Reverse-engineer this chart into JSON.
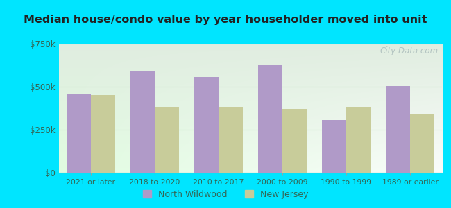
{
  "title": "Median house/condo value by year householder moved into unit",
  "categories": [
    "2021 or later",
    "2018 to 2020",
    "2010 to 2017",
    "2000 to 2009",
    "1990 to 1999",
    "1989 or earlier"
  ],
  "north_wildwood": [
    460000,
    590000,
    555000,
    625000,
    305000,
    505000
  ],
  "new_jersey": [
    450000,
    385000,
    385000,
    370000,
    385000,
    340000
  ],
  "bar_color_nw": "#b09ac8",
  "bar_color_nj": "#c8cc9a",
  "background_outer": "#00e5ff",
  "background_inner_top": "#e8f0e8",
  "background_inner_bottom": "#d0e8d0",
  "ylim": [
    0,
    750000
  ],
  "yticks": [
    0,
    250000,
    500000,
    750000
  ],
  "ytick_labels": [
    "$0",
    "$250k",
    "$500k",
    "$750k"
  ],
  "legend_nw": "North Wildwood",
  "legend_nj": "New Jersey",
  "watermark": "City-Data.com",
  "grid_color": "#c0d8c0",
  "tick_label_color": "#336655",
  "title_color": "#222222"
}
